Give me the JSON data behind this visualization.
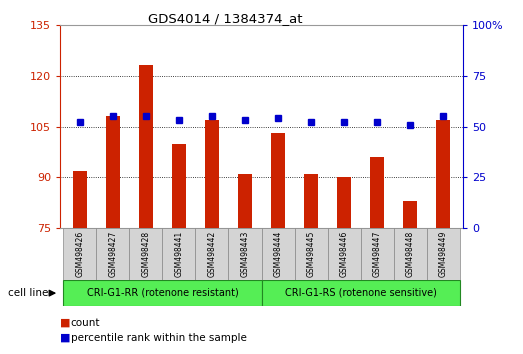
{
  "title": "GDS4014 / 1384374_at",
  "categories": [
    "GSM498426",
    "GSM498427",
    "GSM498428",
    "GSM498441",
    "GSM498442",
    "GSM498443",
    "GSM498444",
    "GSM498445",
    "GSM498446",
    "GSM498447",
    "GSM498448",
    "GSM498449"
  ],
  "bar_values": [
    92,
    108,
    123,
    100,
    107,
    91,
    103,
    91,
    90,
    96,
    83,
    107
  ],
  "percentile_values": [
    52,
    55,
    55,
    53,
    55,
    53,
    54,
    52,
    52,
    52,
    51,
    55
  ],
  "bar_color": "#cc2200",
  "marker_color": "#0000cc",
  "ylim_left": [
    75,
    135
  ],
  "yticks_left": [
    75,
    90,
    105,
    120,
    135
  ],
  "ylim_right": [
    0,
    100
  ],
  "yticks_right": [
    0,
    25,
    50,
    75,
    100
  ],
  "group1_label": "CRI-G1-RR (rotenone resistant)",
  "group2_label": "CRI-G1-RS (rotenone sensitive)",
  "group1_indices": [
    0,
    1,
    2,
    3,
    4,
    5
  ],
  "group2_indices": [
    6,
    7,
    8,
    9,
    10,
    11
  ],
  "group_color": "#55ee55",
  "legend_count_label": "count",
  "legend_pct_label": "percentile rank within the sample",
  "cell_line_label": "cell line",
  "tick_label_color_left": "#cc2200",
  "tick_label_color_right": "#0000cc",
  "grid_color": "#000000",
  "bar_bottom": 75,
  "marker_size": 5,
  "bar_width": 0.4
}
